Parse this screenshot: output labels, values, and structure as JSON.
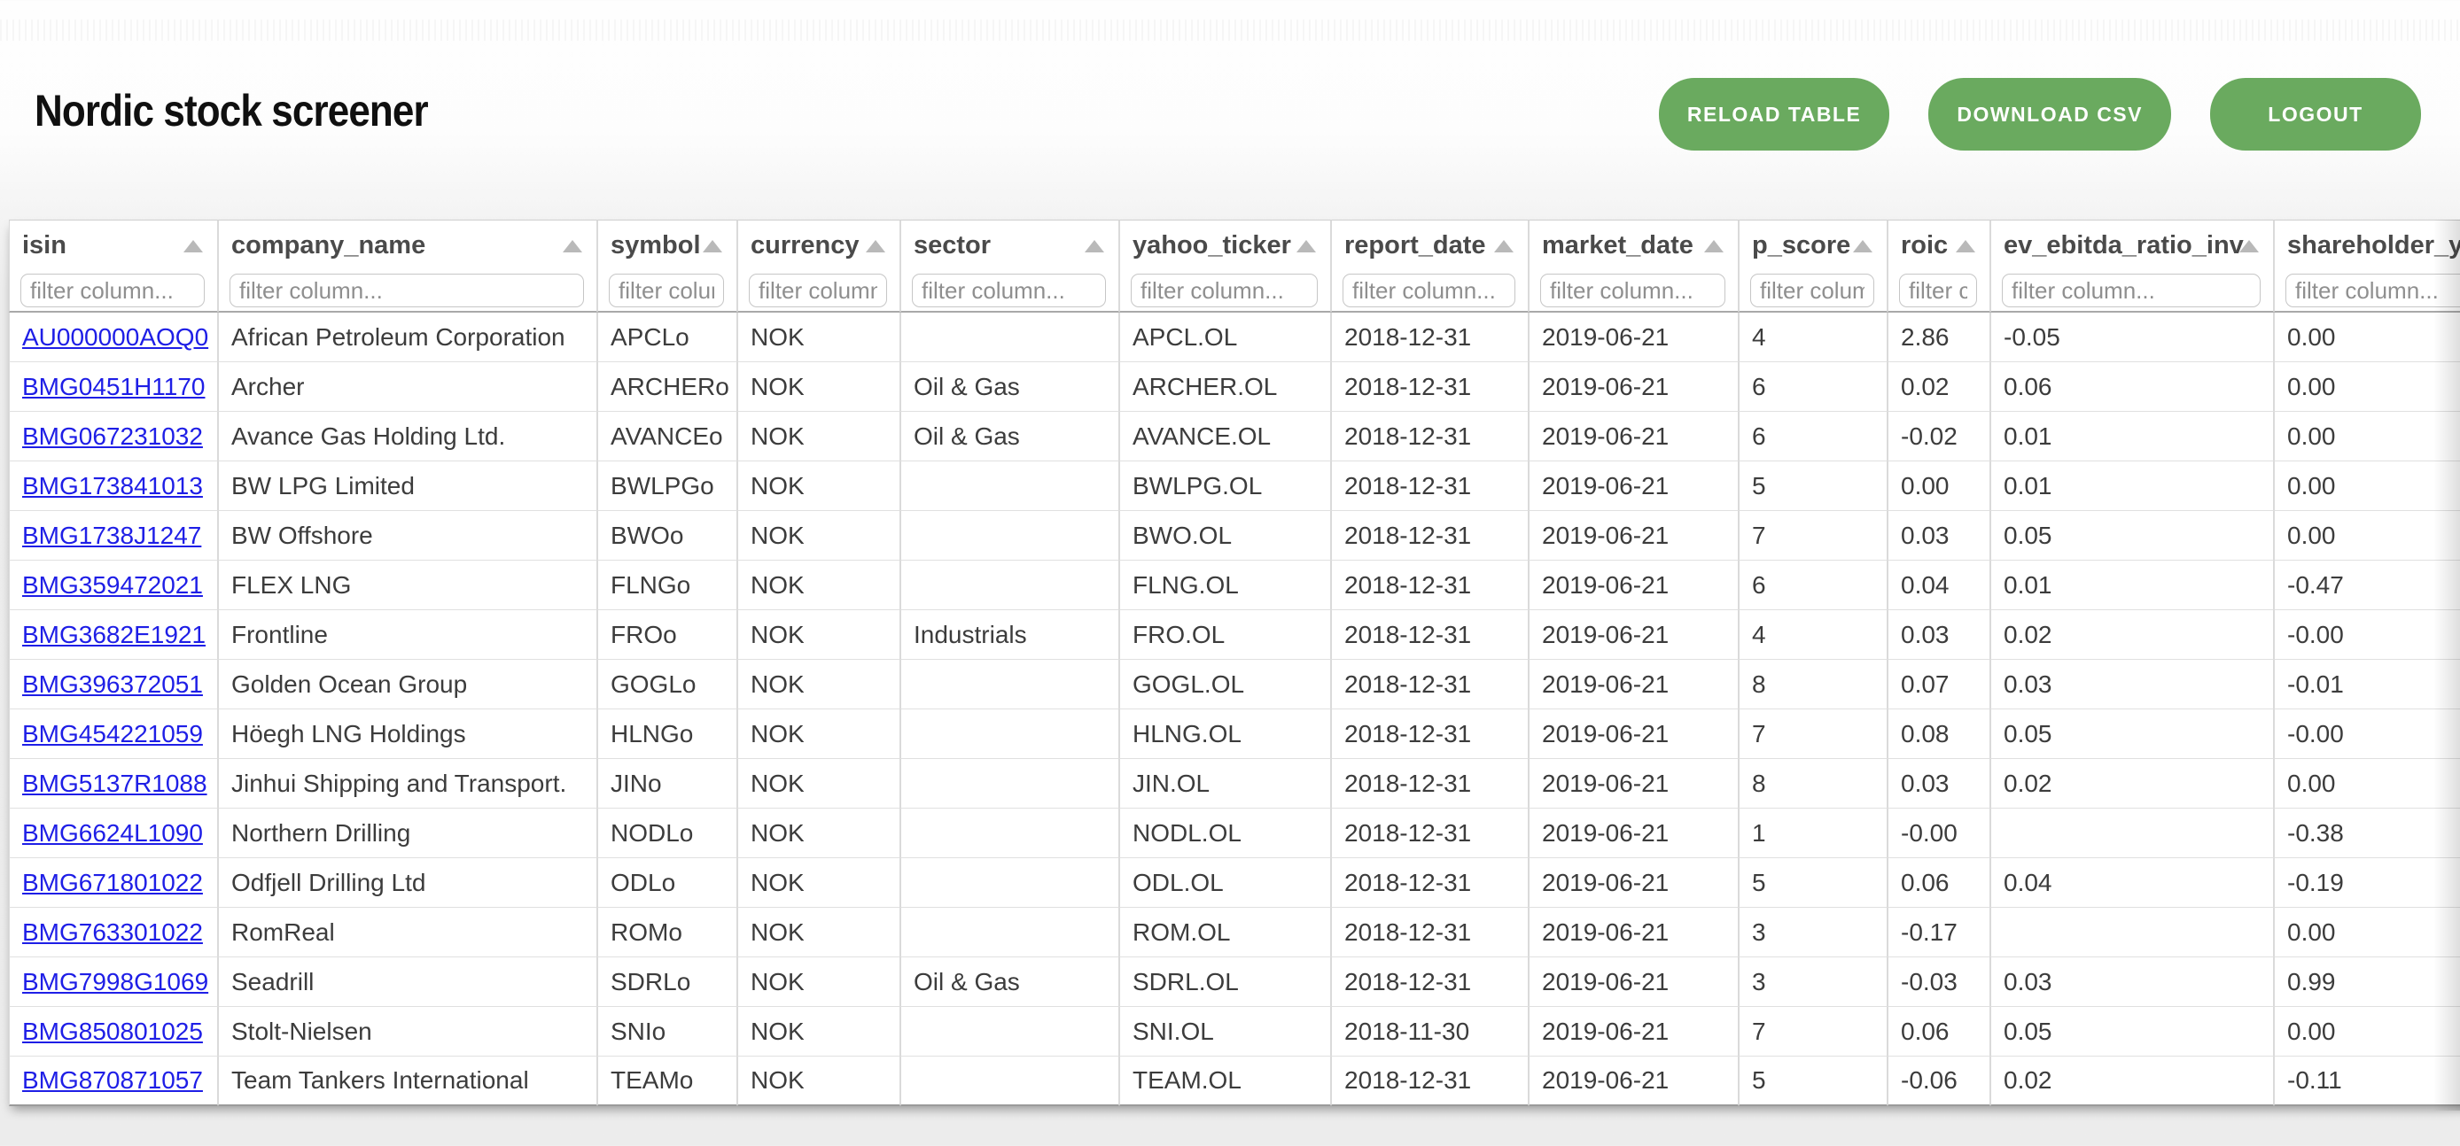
{
  "page": {
    "title": "Nordic stock screener"
  },
  "header": {
    "buttons": [
      {
        "label": "RELOAD TABLE"
      },
      {
        "label": "DOWNLOAD CSV"
      },
      {
        "label": "LOGOUT"
      }
    ]
  },
  "colors": {
    "button_green": "#6aaa5f",
    "link_blue": "#1e1ee6",
    "header_text": "#4a4a4a",
    "cell_text": "#3c3c3c"
  },
  "icons": {
    "sort": "sort-asc-icon"
  },
  "table": {
    "filter_placeholder": "filter column...",
    "columns": [
      {
        "label": "isin"
      },
      {
        "label": "company_name"
      },
      {
        "label": "symbol"
      },
      {
        "label": "currency"
      },
      {
        "label": "sector"
      },
      {
        "label": "yahoo_ticker"
      },
      {
        "label": "report_date"
      },
      {
        "label": "market_date"
      },
      {
        "label": "p_score"
      },
      {
        "label": "roic"
      },
      {
        "label": "ev_ebitda_ratio_inv"
      },
      {
        "label": "shareholder_yield"
      }
    ],
    "rows": [
      [
        "AU000000AOQ0",
        "African Petroleum Corporation",
        "APCLo",
        "NOK",
        "",
        "APCL.OL",
        "2018-12-31",
        "2019-06-21",
        "4",
        "2.86",
        "-0.05",
        "0.00"
      ],
      [
        "BMG0451H1170",
        "Archer",
        "ARCHERo",
        "NOK",
        "Oil & Gas",
        "ARCHER.OL",
        "2018-12-31",
        "2019-06-21",
        "6",
        "0.02",
        "0.06",
        "0.00"
      ],
      [
        "BMG067231032",
        "Avance Gas Holding Ltd.",
        "AVANCEo",
        "NOK",
        "Oil & Gas",
        "AVANCE.OL",
        "2018-12-31",
        "2019-06-21",
        "6",
        "-0.02",
        "0.01",
        "0.00"
      ],
      [
        "BMG173841013",
        "BW LPG Limited",
        "BWLPGo",
        "NOK",
        "",
        "BWLPG.OL",
        "2018-12-31",
        "2019-06-21",
        "5",
        "0.00",
        "0.01",
        "0.00"
      ],
      [
        "BMG1738J1247",
        "BW Offshore",
        "BWOo",
        "NOK",
        "",
        "BWO.OL",
        "2018-12-31",
        "2019-06-21",
        "7",
        "0.03",
        "0.05",
        "0.00"
      ],
      [
        "BMG359472021",
        "FLEX LNG",
        "FLNGo",
        "NOK",
        "",
        "FLNG.OL",
        "2018-12-31",
        "2019-06-21",
        "6",
        "0.04",
        "0.01",
        "-0.47"
      ],
      [
        "BMG3682E1921",
        "Frontline",
        "FROo",
        "NOK",
        "Industrials",
        "FRO.OL",
        "2018-12-31",
        "2019-06-21",
        "4",
        "0.03",
        "0.02",
        "-0.00"
      ],
      [
        "BMG396372051",
        "Golden Ocean Group",
        "GOGLo",
        "NOK",
        "",
        "GOGL.OL",
        "2018-12-31",
        "2019-06-21",
        "8",
        "0.07",
        "0.03",
        "-0.01"
      ],
      [
        "BMG454221059",
        "Höegh LNG Holdings",
        "HLNGo",
        "NOK",
        "",
        "HLNG.OL",
        "2018-12-31",
        "2019-06-21",
        "7",
        "0.08",
        "0.05",
        "-0.00"
      ],
      [
        "BMG5137R1088",
        "Jinhui Shipping and Transport.",
        "JINo",
        "NOK",
        "",
        "JIN.OL",
        "2018-12-31",
        "2019-06-21",
        "8",
        "0.03",
        "0.02",
        "0.00"
      ],
      [
        "BMG6624L1090",
        "Northern Drilling",
        "NODLo",
        "NOK",
        "",
        "NODL.OL",
        "2018-12-31",
        "2019-06-21",
        "1",
        "-0.00",
        "",
        "-0.38"
      ],
      [
        "BMG671801022",
        "Odfjell Drilling Ltd",
        "ODLo",
        "NOK",
        "",
        "ODL.OL",
        "2018-12-31",
        "2019-06-21",
        "5",
        "0.06",
        "0.04",
        "-0.19"
      ],
      [
        "BMG763301022",
        "RomReal",
        "ROMo",
        "NOK",
        "",
        "ROM.OL",
        "2018-12-31",
        "2019-06-21",
        "3",
        "-0.17",
        "",
        "0.00"
      ],
      [
        "BMG7998G1069",
        "Seadrill",
        "SDRLo",
        "NOK",
        "Oil & Gas",
        "SDRL.OL",
        "2018-12-31",
        "2019-06-21",
        "3",
        "-0.03",
        "0.03",
        "0.99"
      ],
      [
        "BMG850801025",
        "Stolt-Nielsen",
        "SNIo",
        "NOK",
        "",
        "SNI.OL",
        "2018-11-30",
        "2019-06-21",
        "7",
        "0.06",
        "0.05",
        "0.00"
      ],
      [
        "BMG870871057",
        "Team Tankers International",
        "TEAMo",
        "NOK",
        "",
        "TEAM.OL",
        "2018-12-31",
        "2019-06-21",
        "5",
        "-0.06",
        "0.02",
        "-0.11"
      ]
    ]
  }
}
